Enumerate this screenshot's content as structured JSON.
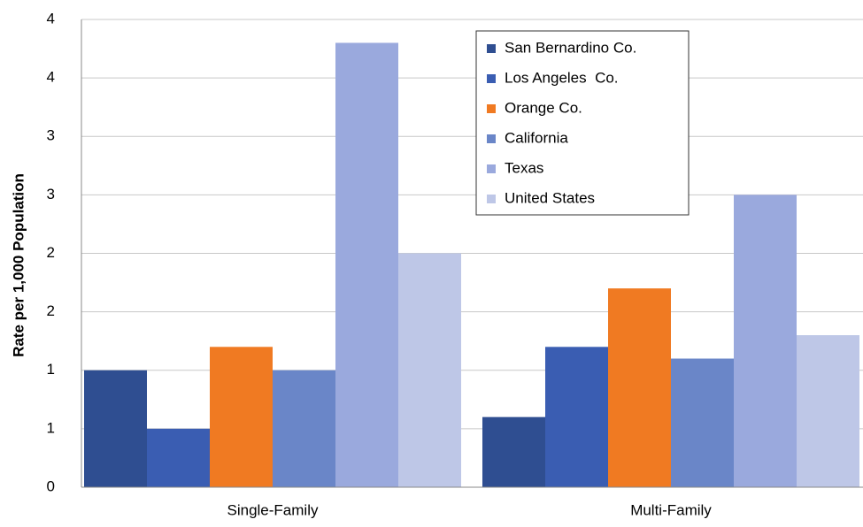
{
  "chart_data": {
    "type": "bar",
    "y_label": "Rate per 1,000 Population",
    "categories": [
      "Single-Family",
      "Multi-Family"
    ],
    "series": [
      {
        "name": "San Bernardino Co.",
        "color": "#2f4e91",
        "values": [
          1.0,
          0.6
        ]
      },
      {
        "name": "Los Angeles  Co.",
        "color": "#3a5db2",
        "values": [
          0.5,
          1.2
        ]
      },
      {
        "name": "Orange Co.",
        "color": "#f07a22",
        "values": [
          1.2,
          1.7
        ]
      },
      {
        "name": "California",
        "color": "#6a86c8",
        "values": [
          1.0,
          1.1
        ]
      },
      {
        "name": "Texas",
        "color": "#9aa9dd",
        "values": [
          3.8,
          2.5
        ]
      },
      {
        "name": "United States",
        "color": "#bec7e7",
        "values": [
          2.0,
          1.3
        ]
      }
    ],
    "ylim": [
      0,
      4
    ],
    "yticks": [
      0,
      {
        "value": 0.5,
        "label": "1"
      },
      1,
      {
        "value": 1.5,
        "label": "2"
      },
      2,
      {
        "value": 2.5,
        "label": "3"
      },
      3,
      {
        "value": 3.5,
        "label": "4"
      },
      4
    ],
    "grid": true,
    "legend": "top-right"
  }
}
